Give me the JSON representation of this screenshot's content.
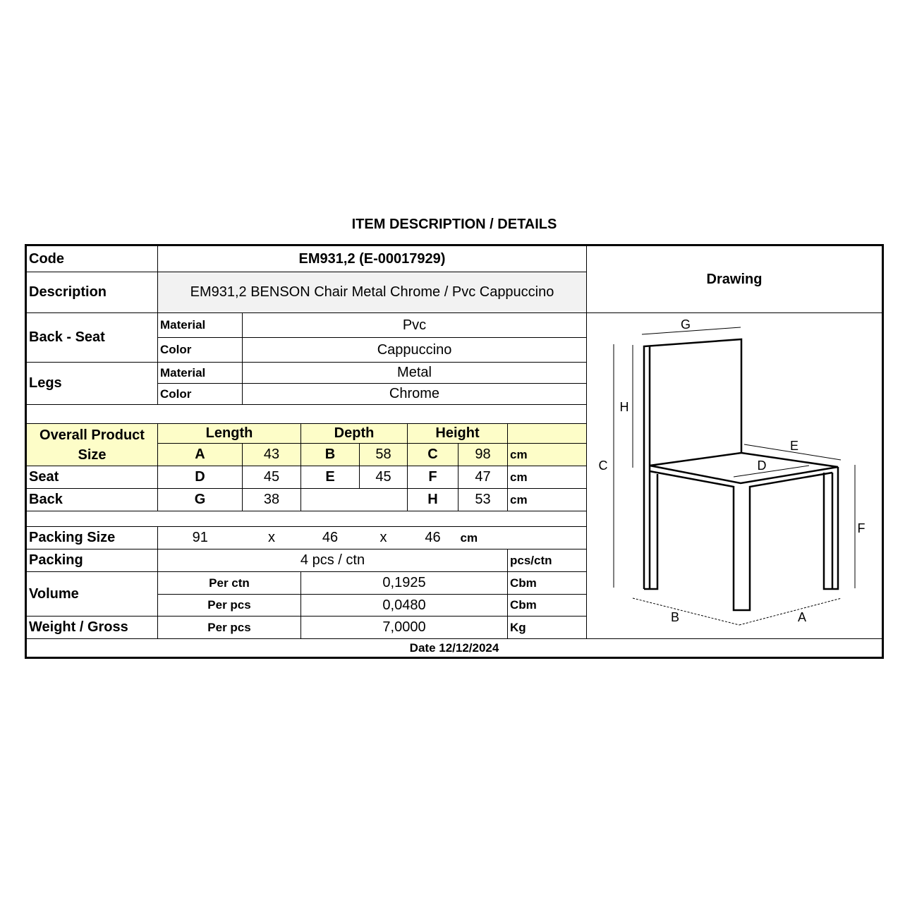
{
  "title": "ITEM DESCRIPTION / DETAILS",
  "code": {
    "label": "Code",
    "value": "EM931,2 (E-00017929)"
  },
  "description": {
    "label": "Description",
    "value": "EM931,2 BENSON Chair Metal Chrome / Pvc Cappuccino"
  },
  "drawing_label": "Drawing",
  "back_seat": {
    "label": "Back - Seat",
    "material_label": "Material",
    "material": "Pvc",
    "color_label": "Color",
    "color": "Cappuccino"
  },
  "legs": {
    "label": "Legs",
    "material_label": "Material",
    "material": "Metal",
    "color_label": "Color",
    "color": "Chrome"
  },
  "size": {
    "label": "Overall Product Size",
    "length": "Length",
    "depth": "Depth",
    "height": "Height",
    "unit": "cm",
    "overall": {
      "a_label": "A",
      "a": "43",
      "b_label": "B",
      "b": "58",
      "c_label": "C",
      "c": "98"
    },
    "seat": {
      "label": "Seat",
      "d_label": "D",
      "d": "45",
      "e_label": "E",
      "e": "45",
      "f_label": "F",
      "f": "47"
    },
    "back": {
      "label": "Back",
      "g_label": "G",
      "g": "38",
      "h_label": "H",
      "h": "53"
    }
  },
  "packing_size": {
    "label": "Packing Size",
    "l": "91",
    "x1": "x",
    "w": "46",
    "x2": "x",
    "h": "46",
    "unit": "cm"
  },
  "packing": {
    "label": "Packing",
    "value": "4 pcs / ctn",
    "unit": "pcs/ctn"
  },
  "volume": {
    "label": "Volume",
    "per_ctn_label": "Per ctn",
    "per_ctn": "0,1925",
    "per_pcs_label": "Per pcs",
    "per_pcs": "0,0480",
    "unit": "Cbm"
  },
  "weight": {
    "label": "Weight / Gross",
    "per_label": "Per pcs",
    "value": "7,0000",
    "unit": "Kg"
  },
  "date": "Date 12/12/2024",
  "drawing_letters": {
    "a": "A",
    "b": "B",
    "c": "C",
    "d": "D",
    "e": "E",
    "f": "F",
    "g": "G",
    "h": "H"
  },
  "colors": {
    "header_fill": "#fdfdc8",
    "description_fill": "#f2f2f2"
  }
}
